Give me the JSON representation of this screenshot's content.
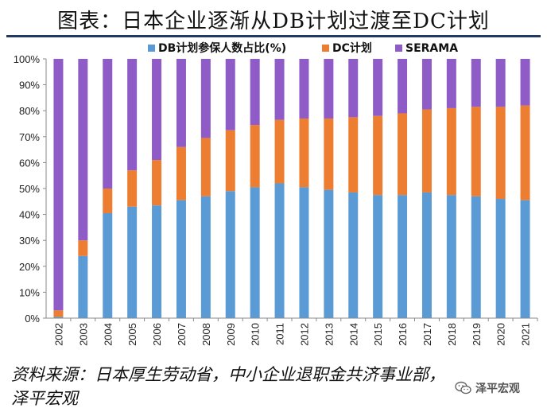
{
  "title": "图表：日本企业逐渐从DB计划过渡至DC计划",
  "source": "资料来源：日本厚生劳动省，中小企业退职金共济事业部，泽平宏观",
  "watermark": "泽平宏观",
  "chart_data": {
    "type": "bar",
    "stacked": true,
    "categories": [
      "2002",
      "2003",
      "2004",
      "2005",
      "2006",
      "2007",
      "2008",
      "2009",
      "2010",
      "2011",
      "2012",
      "2013",
      "2014",
      "2015",
      "2016",
      "2017",
      "2018",
      "2019",
      "2020",
      "2021"
    ],
    "series": [
      {
        "name": "DB计划参保人数占比(%)",
        "color": "#5b9bd5",
        "values": [
          0.5,
          24,
          40.5,
          43,
          43.5,
          45.5,
          47,
          49,
          50.5,
          52,
          50.5,
          49.5,
          48.5,
          47.5,
          47.5,
          48.5,
          47.5,
          47,
          46,
          45.5
        ]
      },
      {
        "name": "DC计划",
        "color": "#ed7d31",
        "values": [
          2.5,
          6,
          9.5,
          14,
          17.5,
          20.5,
          22.5,
          23.5,
          24,
          24.5,
          26.5,
          27.5,
          29,
          30.5,
          31.5,
          32,
          33.5,
          34.5,
          35.5,
          36.5
        ]
      },
      {
        "name": "SERAMA",
        "color": "#8e5bc7",
        "values": [
          97,
          70,
          50,
          43,
          39,
          34,
          30.5,
          27.5,
          25.5,
          23.5,
          23,
          23,
          22.5,
          22,
          21,
          19.5,
          19,
          18.5,
          18.5,
          18
        ]
      }
    ],
    "ylim": [
      0,
      100
    ],
    "yticks": [
      "0%",
      "10%",
      "20%",
      "30%",
      "40%",
      "50%",
      "60%",
      "70%",
      "80%",
      "90%",
      "100%"
    ],
    "grid": false,
    "legend": "top"
  }
}
